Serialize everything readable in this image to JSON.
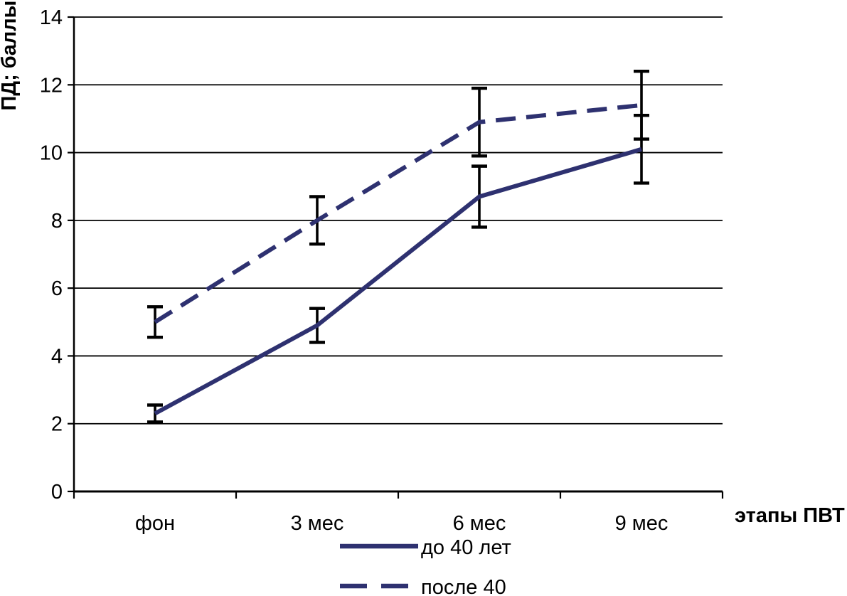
{
  "chart_data": {
    "type": "line",
    "title": "",
    "categories": [
      "фон",
      "3 мес",
      "6 мес",
      "9 мес"
    ],
    "series": [
      {
        "name": "до 40 лет",
        "style": "solid",
        "color": "#2E3170",
        "values": [
          2.3,
          4.9,
          8.7,
          10.1
        ],
        "errors": [
          0.25,
          0.5,
          0.9,
          1.0
        ]
      },
      {
        "name": "после 40",
        "style": "dashed",
        "color": "#2E3170",
        "values": [
          5.0,
          8.0,
          10.9,
          11.4
        ],
        "errors": [
          0.45,
          0.7,
          1.0,
          1.0
        ]
      }
    ],
    "xlabel": "этапы ПВТ",
    "ylabel": "ПД; баллы",
    "ylim": [
      0,
      14
    ],
    "yticks": [
      0,
      2,
      4,
      6,
      8,
      10,
      12,
      14
    ],
    "grid": true,
    "error_bar_color": "#000000",
    "axis_color": "#000000",
    "legend_position": "bottom"
  }
}
